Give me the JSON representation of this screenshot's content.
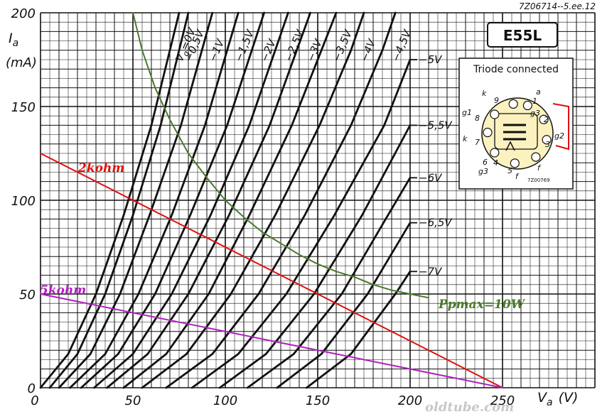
{
  "chart_data": {
    "type": "line",
    "code": "7Z06714--5.ee.12",
    "tube": "E55L",
    "connection": "Triode connected",
    "xlabel": "V",
    "xlabel_sub": "a",
    "xunit": "(V)",
    "ylabel": "I",
    "ylabel_sub": "a",
    "yunit": "(mA)",
    "xlim": [
      0,
      300
    ],
    "ylim": [
      0,
      200
    ],
    "x_ticks": [
      0,
      50,
      100,
      150,
      200,
      250
    ],
    "y_ticks": [
      0,
      50,
      100,
      150,
      200
    ],
    "grid": true,
    "vg_first_label_prefix": "V",
    "vg_first_label_sub": "g",
    "vg_first_label_value": "=0V",
    "grid_curves": [
      {
        "vg": 0,
        "label": "=0V",
        "points": [
          [
            0,
            0
          ],
          [
            15,
            18
          ],
          [
            30,
            50
          ],
          [
            45,
            92
          ],
          [
            60,
            140
          ],
          [
            75,
            200
          ]
        ]
      },
      {
        "vg": -0.5,
        "label": "−0,5V",
        "points": [
          [
            5,
            0
          ],
          [
            20,
            18
          ],
          [
            35,
            50
          ],
          [
            50,
            92
          ],
          [
            65,
            140
          ],
          [
            80,
            200
          ]
        ]
      },
      {
        "vg": -1,
        "label": "−1V",
        "points": [
          [
            10,
            0
          ],
          [
            27,
            18
          ],
          [
            43,
            50
          ],
          [
            59,
            92
          ],
          [
            76,
            140
          ],
          [
            93,
            200
          ]
        ]
      },
      {
        "vg": -1.5,
        "label": "−1,5V",
        "points": [
          [
            16,
            0
          ],
          [
            35,
            18
          ],
          [
            53,
            50
          ],
          [
            71,
            92
          ],
          [
            89,
            140
          ],
          [
            107,
            200
          ]
        ]
      },
      {
        "vg": -2,
        "label": "−2V",
        "points": [
          [
            22,
            0
          ],
          [
            42,
            18
          ],
          [
            62,
            50
          ],
          [
            81,
            92
          ],
          [
            101,
            140
          ],
          [
            121,
            200
          ]
        ]
      },
      {
        "vg": -2.5,
        "label": "−2,5V",
        "points": [
          [
            29,
            0
          ],
          [
            50,
            18
          ],
          [
            71,
            50
          ],
          [
            92,
            92
          ],
          [
            113,
            140
          ],
          [
            134,
            200
          ]
        ]
      },
      {
        "vg": -3,
        "label": "−3V",
        "points": [
          [
            36,
            0
          ],
          [
            58,
            18
          ],
          [
            80,
            50
          ],
          [
            102,
            92
          ],
          [
            124,
            140
          ],
          [
            146,
            200
          ]
        ]
      },
      {
        "vg": -3.5,
        "label": "−3,5V",
        "points": [
          [
            45,
            0
          ],
          [
            68,
            18
          ],
          [
            91,
            50
          ],
          [
            113,
            92
          ],
          [
            136,
            140
          ],
          [
            152,
            180
          ],
          [
            160,
            200
          ]
        ]
      },
      {
        "vg": -4,
        "label": "−4V",
        "points": [
          [
            55,
            0
          ],
          [
            79,
            18
          ],
          [
            103,
            50
          ],
          [
            127,
            92
          ],
          [
            151,
            140
          ],
          [
            168,
            180
          ],
          [
            175,
            200
          ]
        ]
      },
      {
        "vg": -4.5,
        "label": "−4,5V",
        "points": [
          [
            68,
            0
          ],
          [
            93,
            18
          ],
          [
            118,
            50
          ],
          [
            143,
            92
          ],
          [
            168,
            140
          ],
          [
            185,
            180
          ],
          [
            192,
            200
          ]
        ]
      },
      {
        "vg": -5,
        "label": "−5V",
        "points": [
          [
            82,
            0
          ],
          [
            107,
            18
          ],
          [
            133,
            50
          ],
          [
            159,
            92
          ],
          [
            186,
            140
          ],
          [
            200,
            175
          ]
        ]
      },
      {
        "vg": -5.5,
        "label": "−5,5V",
        "points": [
          [
            97,
            0
          ],
          [
            122,
            18
          ],
          [
            148,
            50
          ],
          [
            174,
            92
          ],
          [
            200,
            140
          ]
        ]
      },
      {
        "vg": -6,
        "label": "−6V",
        "points": [
          [
            112,
            0
          ],
          [
            137,
            18
          ],
          [
            163,
            50
          ],
          [
            188,
            92
          ],
          [
            200,
            112
          ]
        ]
      },
      {
        "vg": -6.5,
        "label": "−6,5V",
        "points": [
          [
            128,
            0
          ],
          [
            152,
            18
          ],
          [
            177,
            50
          ],
          [
            200,
            88
          ]
        ]
      },
      {
        "vg": -7,
        "label": "−7V",
        "points": [
          [
            144,
            0
          ],
          [
            168,
            18
          ],
          [
            192,
            50
          ],
          [
            200,
            62
          ]
        ]
      }
    ],
    "pmax_curve": {
      "label": "Ppmax=10W",
      "color": "#4a7a2a",
      "points": [
        [
          50,
          200
        ],
        [
          55,
          180
        ],
        [
          62,
          160
        ],
        [
          70,
          143
        ],
        [
          80,
          125
        ],
        [
          90,
          112
        ],
        [
          100,
          100
        ],
        [
          110,
          91
        ],
        [
          120,
          83
        ],
        [
          130,
          77
        ],
        [
          140,
          71
        ],
        [
          150,
          66
        ],
        [
          160,
          62
        ],
        [
          170,
          59
        ],
        [
          180,
          55
        ],
        [
          190,
          52
        ],
        [
          200,
          50
        ],
        [
          210,
          48
        ]
      ]
    },
    "load_lines": [
      {
        "label": "2kohm",
        "color": "#e01010",
        "points": [
          [
            0,
            125
          ],
          [
            250,
            0
          ]
        ]
      },
      {
        "label": "5kohm",
        "color": "#b020c0",
        "points": [
          [
            0,
            50
          ],
          [
            250,
            0
          ]
        ]
      }
    ],
    "pin_labels": [
      "k",
      "9",
      "a",
      "1",
      "g1",
      "8",
      "g3",
      "2",
      "k",
      "7",
      "3",
      "g2",
      "6",
      "4",
      "f",
      "g3",
      "5",
      "f"
    ],
    "inset_code": "7Z00769",
    "watermark": "oldtube.com"
  }
}
